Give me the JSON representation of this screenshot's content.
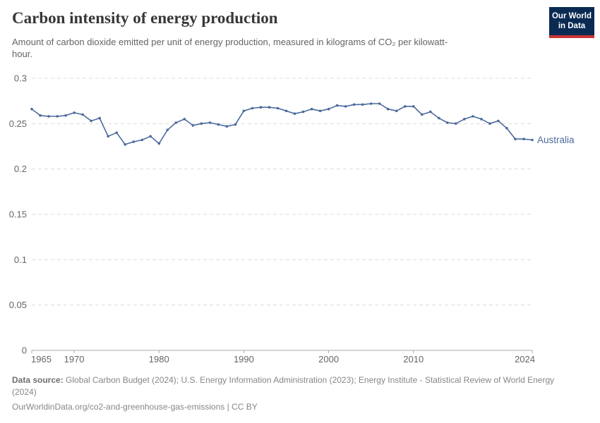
{
  "header": {
    "title": "Carbon intensity of energy production",
    "subtitle": "Amount of carbon dioxide emitted per unit of energy production, measured in kilograms of CO₂ per kilowatt-hour.",
    "logo": {
      "line1": "Our World",
      "line2": "in Data"
    }
  },
  "chart_data": {
    "type": "line",
    "title": "Carbon intensity of energy production",
    "xlim": [
      1965,
      2024
    ],
    "ylim": [
      0,
      0.3
    ],
    "x_ticks": [
      "1965",
      "1970",
      "1980",
      "1990",
      "2000",
      "2010",
      "2024"
    ],
    "y_ticks": [
      "0",
      "0.05",
      "0.1",
      "0.15",
      "0.2",
      "0.25",
      "0.3"
    ],
    "grid": "horizontal-dashed",
    "legend_position": "end-of-line-label",
    "series": [
      {
        "name": "Australia",
        "color": "#4c6a9c",
        "x": [
          1965,
          1966,
          1967,
          1968,
          1969,
          1970,
          1971,
          1972,
          1973,
          1974,
          1975,
          1976,
          1977,
          1978,
          1979,
          1980,
          1981,
          1982,
          1983,
          1984,
          1985,
          1986,
          1987,
          1988,
          1989,
          1990,
          1991,
          1992,
          1993,
          1994,
          1995,
          1996,
          1997,
          1998,
          1999,
          2000,
          2001,
          2002,
          2003,
          2004,
          2005,
          2006,
          2007,
          2008,
          2009,
          2010,
          2011,
          2012,
          2013,
          2014,
          2015,
          2016,
          2017,
          2018,
          2019,
          2020,
          2021,
          2022,
          2023,
          2024
        ],
        "values": [
          0.266,
          0.259,
          0.258,
          0.258,
          0.259,
          0.262,
          0.26,
          0.253,
          0.256,
          0.236,
          0.24,
          0.227,
          0.23,
          0.232,
          0.236,
          0.228,
          0.243,
          0.251,
          0.255,
          0.248,
          0.25,
          0.251,
          0.249,
          0.247,
          0.249,
          0.264,
          0.267,
          0.268,
          0.268,
          0.267,
          0.264,
          0.261,
          0.263,
          0.266,
          0.264,
          0.266,
          0.27,
          0.269,
          0.271,
          0.271,
          0.272,
          0.272,
          0.266,
          0.264,
          0.269,
          0.269,
          0.26,
          0.263,
          0.256,
          0.251,
          0.25,
          0.255,
          0.258,
          0.255,
          0.25,
          0.253,
          0.245,
          0.233,
          0.233,
          0.232
        ]
      }
    ]
  },
  "colors": {
    "accent_line": "#4c6a9c",
    "gridline": "#dcdcdc",
    "axis": "#a8a8a8",
    "tick_text": "#666666",
    "logo_navy": "#0a2a52",
    "logo_red": "#cb3434"
  },
  "footer": {
    "datasource_label": "Data source:",
    "datasource_text": " Global Carbon Budget (2024); U.S. Energy Information Administration (2023); Energy Institute - Statistical Review of World Energy (2024)",
    "url_line": "OurWorldinData.org/co2-and-greenhouse-gas-emissions | CC BY"
  }
}
